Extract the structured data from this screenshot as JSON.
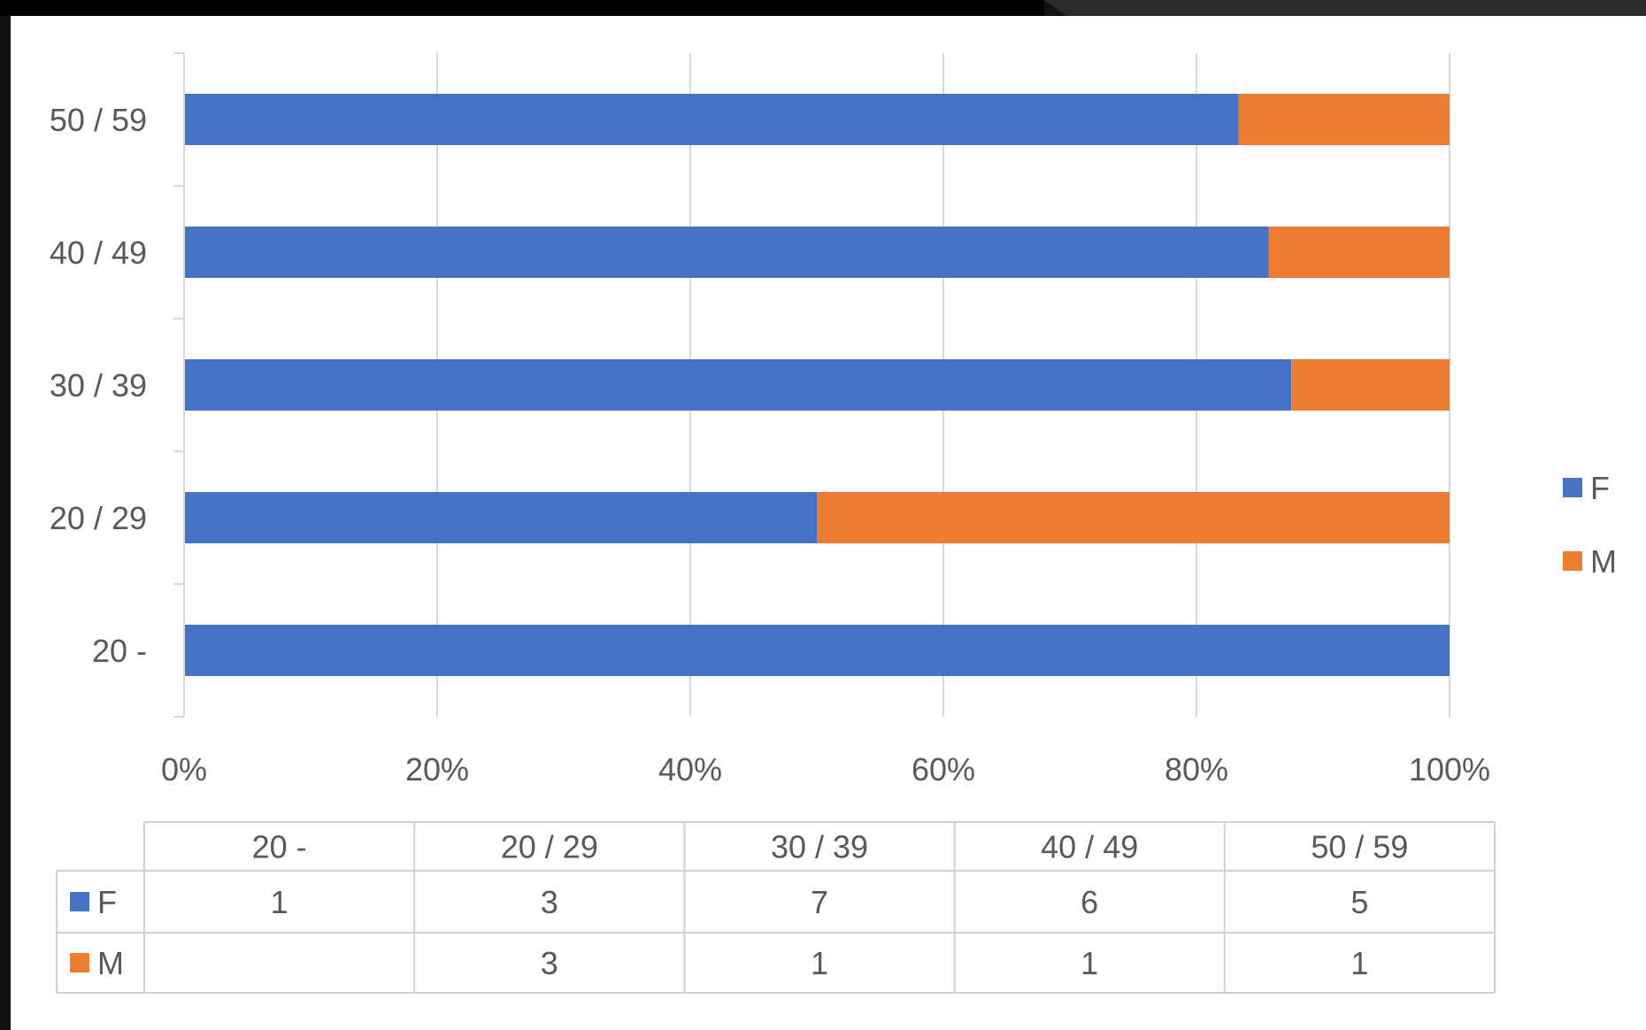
{
  "chart_data": {
    "type": "bar",
    "orientation": "horizontal",
    "stacked": "percent",
    "categories": [
      "20 -",
      "20 / 29",
      "30 / 39",
      "40 / 49",
      "50 / 59"
    ],
    "series": [
      {
        "name": "F",
        "values": [
          1,
          3,
          7,
          6,
          5
        ],
        "color": "#4472C4"
      },
      {
        "name": "M",
        "values": [
          null,
          3,
          1,
          1,
          1
        ],
        "color": "#ED7D31"
      }
    ],
    "x_ticks": [
      "0%",
      "20%",
      "40%",
      "60%",
      "80%",
      "100%"
    ],
    "xlim": [
      0,
      100
    ],
    "grid": true,
    "legend_position": "right",
    "data_table": true
  }
}
